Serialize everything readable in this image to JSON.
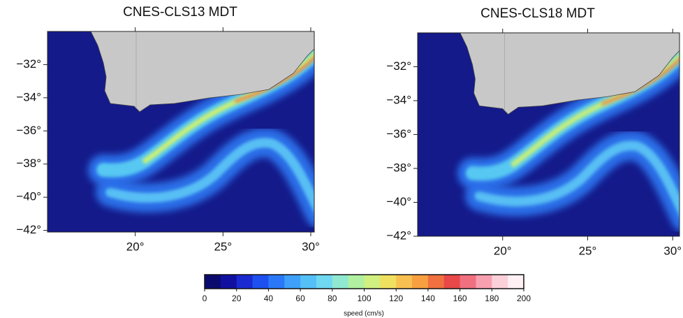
{
  "panels": [
    {
      "title": "CNES-CLS13 MDT",
      "xlim": [
        15,
        30.2
      ],
      "ylim": [
        -42.1,
        -30
      ],
      "xticks": [
        {
          "value": 20,
          "label": "20°"
        },
        {
          "value": 25,
          "label": "25°"
        },
        {
          "value": 30,
          "label": "30°"
        }
      ],
      "yticks": [
        {
          "value": -32,
          "label": "−32°"
        },
        {
          "value": -34,
          "label": "−34°"
        },
        {
          "value": -36,
          "label": "−36°"
        },
        {
          "value": -38,
          "label": "−38°"
        },
        {
          "value": -40,
          "label": "−40°"
        },
        {
          "value": -42,
          "label": "−42°"
        }
      ]
    },
    {
      "title": "CNES-CLS18 MDT",
      "xlim": [
        15,
        30.4
      ],
      "ylim": [
        -42,
        -30
      ],
      "xticks": [
        {
          "value": 20,
          "label": "20°"
        },
        {
          "value": 25,
          "label": "25°"
        },
        {
          "value": 30,
          "label": "30°"
        }
      ],
      "yticks": [
        {
          "value": -32,
          "label": "−32°"
        },
        {
          "value": -34,
          "label": "−34°"
        },
        {
          "value": -36,
          "label": "−36°"
        },
        {
          "value": -38,
          "label": "−38°"
        },
        {
          "value": -40,
          "label": "−40°"
        },
        {
          "value": -42,
          "label": "−42°"
        }
      ]
    }
  ],
  "colorbar": {
    "lim": [
      0,
      200
    ],
    "ticks": [
      0,
      20,
      40,
      60,
      80,
      100,
      120,
      140,
      160,
      180,
      200
    ],
    "label": "speed (cm/s)",
    "colors": [
      "#0a0a6e",
      "#1010a0",
      "#1a2ad0",
      "#1e50f0",
      "#2a78f8",
      "#3ea0f8",
      "#55c0f8",
      "#70d8f0",
      "#90e8d0",
      "#b0f0a0",
      "#d0f080",
      "#f0e060",
      "#f8c050",
      "#f8a040",
      "#f07040",
      "#e84848",
      "#f07080",
      "#f8a0b0",
      "#fcd0d8",
      "#fff0f4"
    ]
  }
}
